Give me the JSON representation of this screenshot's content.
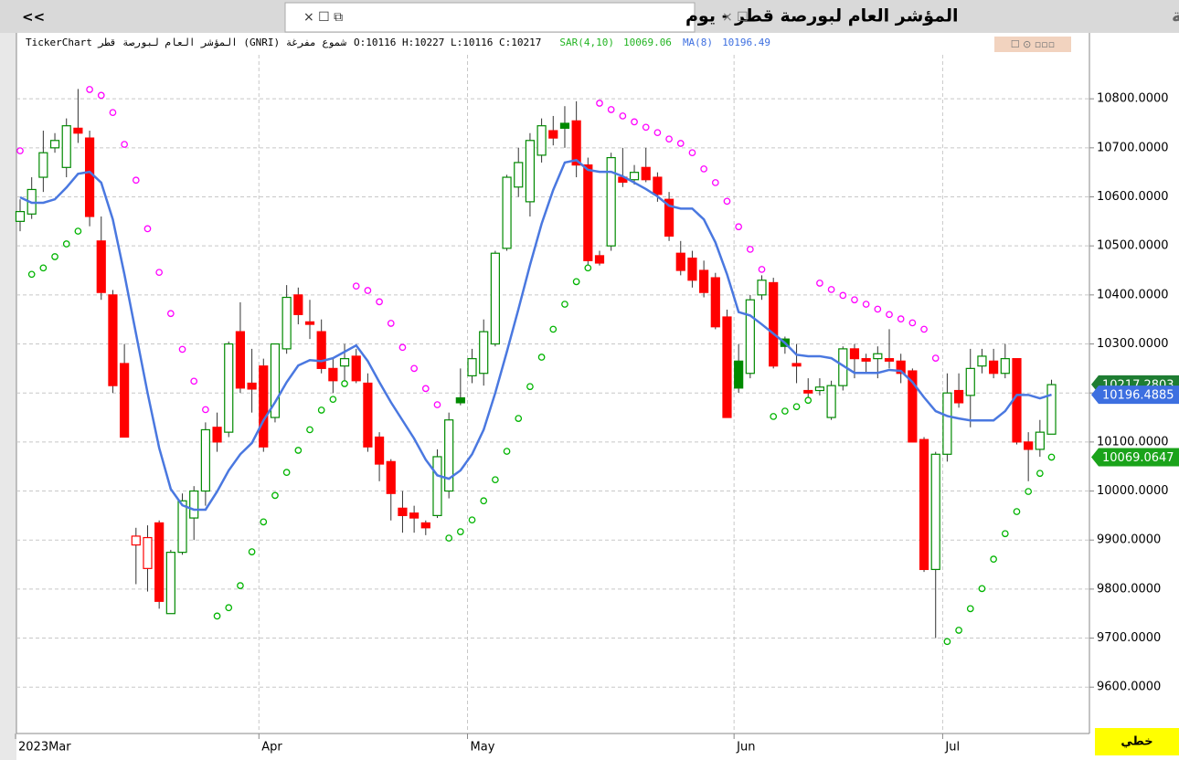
{
  "tabs": {
    "nav": "<<",
    "active": "المؤشر العام لبورصة قطر - يوم",
    "inactive": "المؤشر العام لبورصة قطر - ربع سنة"
  },
  "chart_data": {
    "type": "candlestick",
    "title": "TickerChart المؤشر العام لبورصة قطر (GNRI) شموع مفرغة",
    "ohlc_label": "O:10116  H:10227  L:10116  C:10217",
    "categories": [
      "2023Mar",
      null,
      null,
      null,
      null,
      null,
      null,
      null,
      null,
      null,
      null,
      null,
      null,
      null,
      null,
      null,
      null,
      null,
      null,
      null,
      null,
      "Apr",
      null,
      null,
      null,
      null,
      null,
      null,
      null,
      null,
      null,
      null,
      null,
      null,
      null,
      null,
      null,
      null,
      null,
      "May",
      null,
      null,
      null,
      null,
      null,
      null,
      null,
      null,
      null,
      null,
      null,
      null,
      null,
      null,
      null,
      null,
      null,
      null,
      null,
      null,
      null,
      null,
      "Jun",
      null,
      null,
      null,
      null,
      null,
      null,
      null,
      null,
      null,
      null,
      null,
      null,
      null,
      null,
      null,
      null,
      null,
      "Jul",
      null,
      null,
      null,
      null,
      null,
      null,
      null,
      null,
      null
    ],
    "open": [
      10550,
      10565,
      10640,
      10700,
      10660,
      10740,
      10720,
      10510,
      10400,
      10260,
      9890,
      9842,
      9935,
      9750,
      9875,
      9945,
      10000,
      10130,
      10120,
      10325,
      10220,
      10255,
      10150,
      10290,
      10400,
      10345,
      10325,
      10250,
      10255,
      10275,
      10220,
      10110,
      10060,
      9965,
      9955,
      9935,
      9950,
      10000,
      10190,
      10235,
      10240,
      10300,
      10495,
      10620,
      10590,
      10685,
      10735,
      10750,
      10755,
      10665,
      10480,
      10500,
      10640,
      10635,
      10660,
      10640,
      10595,
      10485,
      10475,
      10450,
      10435,
      10355,
      10265,
      10240,
      10400,
      10425,
      10310,
      10260,
      10205,
      10205,
      10150,
      10215,
      10290,
      10270,
      10270,
      10270,
      10265,
      10245,
      10105,
      9840,
      10075,
      10205,
      10195,
      10255,
      10265,
      10240,
      10270,
      10100,
      10085,
      10116
    ],
    "high": [
      10595,
      10640,
      10735,
      10730,
      10760,
      10820,
      10735,
      10560,
      10410,
      10300,
      9925,
      9930,
      9940,
      9880,
      9995,
      10010,
      10140,
      10160,
      10305,
      10385,
      10290,
      10270,
      10300,
      10420,
      10415,
      10390,
      10350,
      10270,
      10300,
      10290,
      10240,
      10120,
      10065,
      10000,
      9970,
      9940,
      10085,
      10160,
      10250,
      10290,
      10350,
      10490,
      10645,
      10700,
      10730,
      10760,
      10765,
      10785,
      10795,
      10680,
      10490,
      10690,
      10700,
      10665,
      10700,
      10650,
      10610,
      10510,
      10490,
      10470,
      10445,
      10370,
      10300,
      10400,
      10440,
      10435,
      10315,
      10300,
      10230,
      10230,
      10225,
      10295,
      10300,
      10280,
      10295,
      10330,
      10280,
      10250,
      10110,
      10080,
      10240,
      10240,
      10290,
      10290,
      10290,
      10300,
      10270,
      10120,
      10145,
      10227
    ],
    "low": [
      10530,
      10555,
      10610,
      10690,
      10640,
      10710,
      10540,
      10390,
      10200,
      10110,
      9810,
      9795,
      9760,
      9750,
      9870,
      9900,
      9970,
      10080,
      10110,
      10200,
      10160,
      10080,
      10140,
      10280,
      10340,
      10310,
      10240,
      10200,
      10220,
      10220,
      10080,
      10020,
      9940,
      9915,
      9915,
      9910,
      9945,
      9985,
      10175,
      10220,
      10215,
      10295,
      10490,
      10600,
      10560,
      10670,
      10705,
      10700,
      10640,
      10460,
      10460,
      10490,
      10620,
      10625,
      10630,
      10590,
      10510,
      10440,
      10415,
      10395,
      10330,
      10150,
      10200,
      10230,
      10390,
      10250,
      10280,
      10220,
      10180,
      10195,
      10145,
      10205,
      10230,
      10240,
      10230,
      10250,
      10220,
      10100,
      9835,
      9700,
      10060,
      10170,
      10130,
      10240,
      10230,
      10230,
      10095,
      10020,
      10070,
      10116
    ],
    "close": [
      10570,
      10615,
      10690,
      10715,
      10745,
      10730,
      10560,
      10405,
      10215,
      10110,
      9908,
      9905,
      9775,
      9875,
      9980,
      10000,
      10125,
      10100,
      10300,
      10210,
      10208,
      10090,
      10300,
      10395,
      10360,
      10340,
      10250,
      10225,
      10270,
      10225,
      10090,
      10055,
      9995,
      9950,
      9945,
      9925,
      10070,
      10145,
      10180,
      10270,
      10325,
      10485,
      10640,
      10670,
      10715,
      10745,
      10720,
      10740,
      10665,
      10470,
      10465,
      10680,
      10630,
      10650,
      10635,
      10605,
      10520,
      10450,
      10430,
      10405,
      10335,
      10150,
      10210,
      10390,
      10430,
      10255,
      10295,
      10255,
      10200,
      10212,
      10215,
      10290,
      10270,
      10265,
      10280,
      10265,
      10240,
      10100,
      9840,
      10075,
      10200,
      10180,
      10250,
      10275,
      10240,
      10270,
      10100,
      10085,
      10120,
      10217
    ],
    "up_color": "#008a00",
    "down_color": "#ff0000",
    "series": [
      {
        "name": "SAR(4,10)",
        "value_label": "10069.06",
        "color": "#00b400",
        "alt_color": "#ff00ff",
        "label_color": "#22b422",
        "values": [
          10694,
          10442,
          10455,
          10478,
          10504,
          10530,
          10819,
          10807,
          10772,
          10707,
          10634,
          10535,
          10446,
          10362,
          10289,
          10224,
          10166,
          9745,
          9762,
          9807,
          9876,
          9937,
          9991,
          10038,
          10083,
          10125,
          10165,
          10187,
          10219,
          10418,
          10409,
          10386,
          10342,
          10293,
          10250,
          10209,
          10176,
          9904,
          9917,
          9941,
          9980,
          10023,
          10081,
          10148,
          10213,
          10273,
          10330,
          10381,
          10427,
          10455,
          10791,
          10778,
          10765,
          10753,
          10742,
          10731,
          10718,
          10709,
          10690,
          10657,
          10629,
          10591,
          10539,
          10493,
          10452,
          10152,
          10163,
          10172,
          10185,
          10424,
          10411,
          10399,
          10390,
          10381,
          10371,
          10360,
          10351,
          10343,
          10330,
          10271,
          9693,
          9716,
          9760,
          9801,
          9861,
          9913,
          9958,
          9999,
          10036,
          10069.06
        ]
      },
      {
        "name": "MA(8)",
        "value_label": "10196.49",
        "color": "#4a78e0",
        "label_color": "#3d6fe0",
        "values": [
          10599,
          10588,
          10588,
          10595,
          10619,
          10647,
          10651,
          10629,
          10554,
          10442,
          10321,
          10200,
          10088,
          10004,
          9971,
          9962,
          9962,
          9999,
          10042,
          10075,
          10098,
          10144,
          10181,
          10222,
          10256,
          10267,
          10265,
          10271,
          10284,
          10297,
          10265,
          10222,
          10181,
          10144,
          10107,
          10064,
          10032,
          10025,
          10042,
          10075,
          10125,
          10200,
          10284,
          10371,
          10461,
          10545,
          10614,
          10670,
          10675,
          10655,
          10651,
          10651,
          10642,
          10629,
          10616,
          10601,
          10582,
          10576,
          10576,
          10554,
          10507,
          10442,
          10365,
          10358,
          10340,
          10321,
          10302,
          10278,
          10275,
          10275,
          10271,
          10256,
          10241,
          10241,
          10241,
          10247,
          10245,
          10222,
          10191,
          10163,
          10153,
          10148,
          10144,
          10144,
          10144,
          10163,
          10196,
          10196,
          10189,
          10196.49
        ]
      }
    ],
    "ylim": [
      9511,
      10927
    ],
    "yticks": [
      {
        "value": 9600,
        "label": "9600.0000"
      },
      {
        "value": 9700,
        "label": "9700.0000"
      },
      {
        "value": 9800,
        "label": "9800.0000"
      },
      {
        "value": 9900,
        "label": "9900.0000"
      },
      {
        "value": 10000,
        "label": "10000.0000"
      },
      {
        "value": 10100,
        "label": "10100.0000"
      },
      {
        "value": 10200,
        "label": "10200.0000"
      },
      {
        "value": 10300,
        "label": "10300.0000"
      },
      {
        "value": 10400,
        "label": "10400.0000"
      },
      {
        "value": 10500,
        "label": "10500.0000"
      },
      {
        "value": 10600,
        "label": "10600.0000"
      },
      {
        "value": 10700,
        "label": "10700.0000"
      },
      {
        "value": 10800,
        "label": "10800.0000"
      }
    ],
    "grid": true,
    "badges": [
      {
        "value": 10217.2803,
        "label": "10217.2803",
        "color": "#1e7d32"
      },
      {
        "value": 10196.4885,
        "label": "10196.4885",
        "color": "#3d6fe0"
      },
      {
        "value": 10069.0647,
        "label": "10069.0647",
        "color": "#1aa31a"
      }
    ],
    "mode_label": "خطي"
  }
}
